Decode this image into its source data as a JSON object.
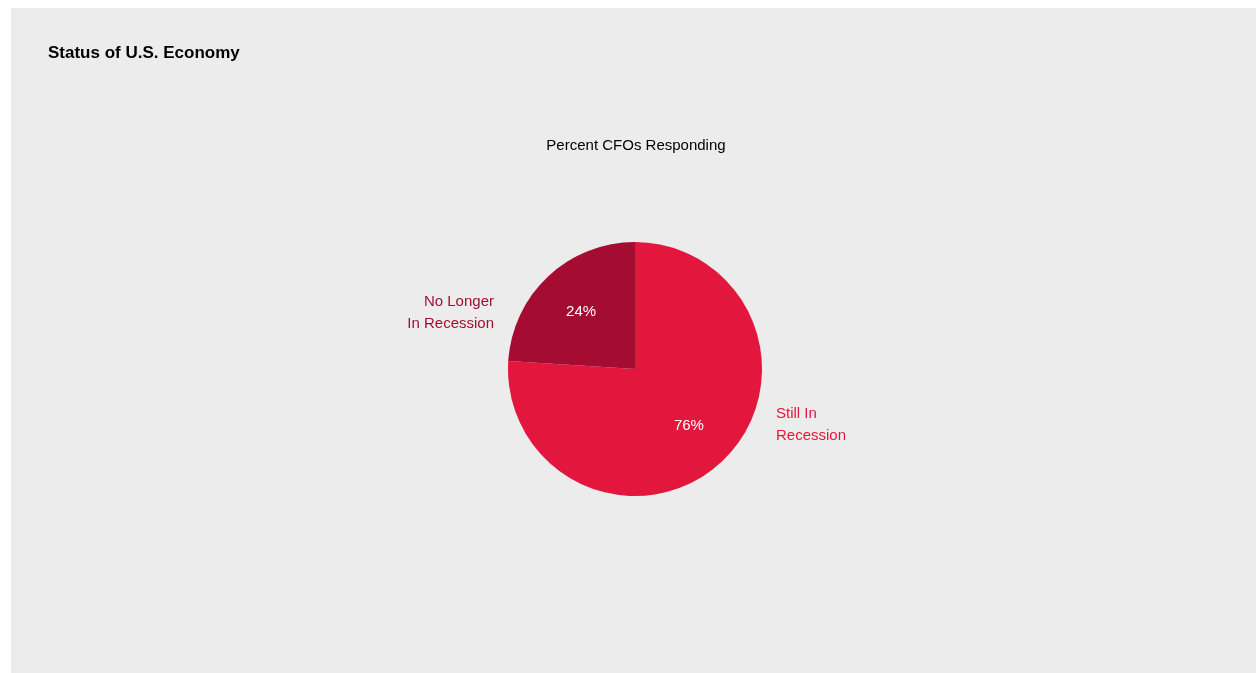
{
  "chart_data": {
    "type": "pie",
    "title": "Status of U.S. Economy",
    "subtitle": "Percent CFOs Responding",
    "categories": [
      "Still In Recession",
      "No Longer In Recession"
    ],
    "values": [
      76,
      24
    ],
    "colors": [
      "#e3173e",
      "#a50c32"
    ],
    "value_labels": [
      "76%",
      "24%"
    ]
  }
}
